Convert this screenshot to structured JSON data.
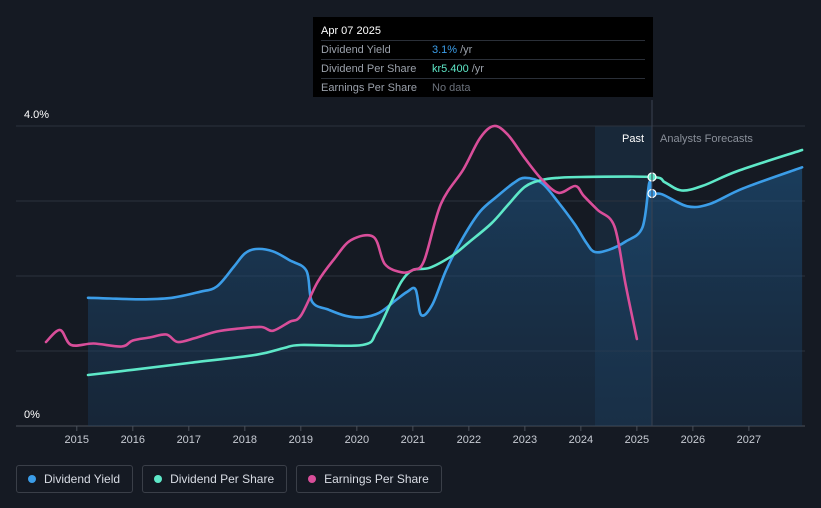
{
  "tooltip": {
    "date": "Apr 07 2025",
    "rows": [
      {
        "label": "Dividend Yield",
        "value": "3.1%",
        "unit": "/yr",
        "color": "#3b9de8"
      },
      {
        "label": "Dividend Per Share",
        "value": "kr5.400",
        "unit": "/yr",
        "color": "#5ee8c8"
      },
      {
        "label": "Earnings Per Share",
        "value": "No data",
        "unit": "",
        "color": "#6c727c"
      }
    ]
  },
  "labels": {
    "past": "Past",
    "forecasts": "Analysts Forecasts",
    "y_top": "4.0%",
    "y_bottom": "0%"
  },
  "legend": [
    {
      "label": "Dividend Yield",
      "color": "#3b9de8"
    },
    {
      "label": "Dividend Per Share",
      "color": "#5ee8c8"
    },
    {
      "label": "Earnings Per Share",
      "color": "#d94e9a"
    }
  ],
  "chart_data": {
    "type": "line",
    "x_ticks": [
      "2015",
      "2016",
      "2017",
      "2018",
      "2019",
      "2020",
      "2021",
      "2022",
      "2023",
      "2024",
      "2025",
      "2026",
      "2027"
    ],
    "xlim": [
      2014.45,
      2027.95
    ],
    "ylim": [
      0,
      4.0
    ],
    "y_ticks": [
      "4.0%",
      "0%"
    ],
    "grid": true,
    "past_forecast_split": 2025.27,
    "series": [
      {
        "name": "Dividend Yield",
        "color": "#3b9de8",
        "unit": "%",
        "area": true,
        "points": [
          [
            2015.2,
            1.71
          ],
          [
            2015.6,
            1.7
          ],
          [
            2016.2,
            1.69
          ],
          [
            2016.7,
            1.71
          ],
          [
            2017.2,
            1.79
          ],
          [
            2017.5,
            1.86
          ],
          [
            2017.8,
            2.12
          ],
          [
            2018.0,
            2.3
          ],
          [
            2018.2,
            2.36
          ],
          [
            2018.5,
            2.33
          ],
          [
            2018.8,
            2.21
          ],
          [
            2019.1,
            2.07
          ],
          [
            2019.2,
            1.66
          ],
          [
            2019.5,
            1.55
          ],
          [
            2019.8,
            1.47
          ],
          [
            2020.1,
            1.45
          ],
          [
            2020.4,
            1.51
          ],
          [
            2020.7,
            1.68
          ],
          [
            2020.9,
            1.79
          ],
          [
            2021.05,
            1.82
          ],
          [
            2021.15,
            1.48
          ],
          [
            2021.35,
            1.62
          ],
          [
            2021.6,
            2.09
          ],
          [
            2021.9,
            2.52
          ],
          [
            2022.2,
            2.86
          ],
          [
            2022.5,
            3.06
          ],
          [
            2022.8,
            3.24
          ],
          [
            2023.0,
            3.31
          ],
          [
            2023.3,
            3.24
          ],
          [
            2023.6,
            2.98
          ],
          [
            2023.9,
            2.68
          ],
          [
            2024.1,
            2.44
          ],
          [
            2024.25,
            2.32
          ],
          [
            2024.5,
            2.35
          ],
          [
            2024.8,
            2.46
          ],
          [
            2025.1,
            2.65
          ],
          [
            2025.22,
            3.24
          ],
          [
            2025.27,
            3.1
          ],
          [
            2025.45,
            3.09
          ],
          [
            2025.9,
            2.93
          ],
          [
            2026.3,
            2.96
          ],
          [
            2026.9,
            3.17
          ],
          [
            2027.95,
            3.45
          ]
        ]
      },
      {
        "name": "Dividend Per Share",
        "color": "#5ee8c8",
        "unit": "kr",
        "points": [
          [
            2015.2,
            0.68
          ],
          [
            2016.0,
            0.75
          ],
          [
            2017.0,
            0.84
          ],
          [
            2018.2,
            0.95
          ],
          [
            2018.7,
            1.04
          ],
          [
            2019.0,
            1.08
          ],
          [
            2020.1,
            1.08
          ],
          [
            2020.35,
            1.25
          ],
          [
            2020.6,
            1.63
          ],
          [
            2020.8,
            1.93
          ],
          [
            2021.0,
            2.08
          ],
          [
            2021.3,
            2.11
          ],
          [
            2021.7,
            2.27
          ],
          [
            2022.0,
            2.45
          ],
          [
            2022.4,
            2.7
          ],
          [
            2022.7,
            2.95
          ],
          [
            2023.0,
            3.19
          ],
          [
            2023.3,
            3.28
          ],
          [
            2023.6,
            3.31
          ],
          [
            2024.0,
            3.32
          ],
          [
            2025.27,
            3.32
          ],
          [
            2025.5,
            3.25
          ],
          [
            2025.8,
            3.14
          ],
          [
            2026.2,
            3.21
          ],
          [
            2026.8,
            3.4
          ],
          [
            2027.95,
            3.68
          ]
        ]
      },
      {
        "name": "Earnings Per Share",
        "color": "#d94e9a",
        "unit": "kr",
        "points": [
          [
            2014.45,
            1.12
          ],
          [
            2014.7,
            1.28
          ],
          [
            2014.9,
            1.08
          ],
          [
            2015.3,
            1.1
          ],
          [
            2015.8,
            1.06
          ],
          [
            2016.0,
            1.14
          ],
          [
            2016.3,
            1.18
          ],
          [
            2016.6,
            1.22
          ],
          [
            2016.8,
            1.12
          ],
          [
            2017.1,
            1.17
          ],
          [
            2017.5,
            1.26
          ],
          [
            2017.9,
            1.3
          ],
          [
            2018.3,
            1.32
          ],
          [
            2018.5,
            1.27
          ],
          [
            2018.8,
            1.39
          ],
          [
            2019.0,
            1.47
          ],
          [
            2019.3,
            1.92
          ],
          [
            2019.6,
            2.23
          ],
          [
            2019.9,
            2.48
          ],
          [
            2020.3,
            2.52
          ],
          [
            2020.5,
            2.16
          ],
          [
            2020.8,
            2.05
          ],
          [
            2021.0,
            2.08
          ],
          [
            2021.2,
            2.2
          ],
          [
            2021.5,
            2.96
          ],
          [
            2021.9,
            3.42
          ],
          [
            2022.2,
            3.84
          ],
          [
            2022.45,
            4.0
          ],
          [
            2022.7,
            3.88
          ],
          [
            2023.0,
            3.57
          ],
          [
            2023.3,
            3.29
          ],
          [
            2023.6,
            3.11
          ],
          [
            2023.9,
            3.2
          ],
          [
            2024.05,
            3.07
          ],
          [
            2024.3,
            2.88
          ],
          [
            2024.6,
            2.66
          ],
          [
            2024.8,
            1.88
          ],
          [
            2025.0,
            1.16
          ]
        ]
      }
    ]
  }
}
